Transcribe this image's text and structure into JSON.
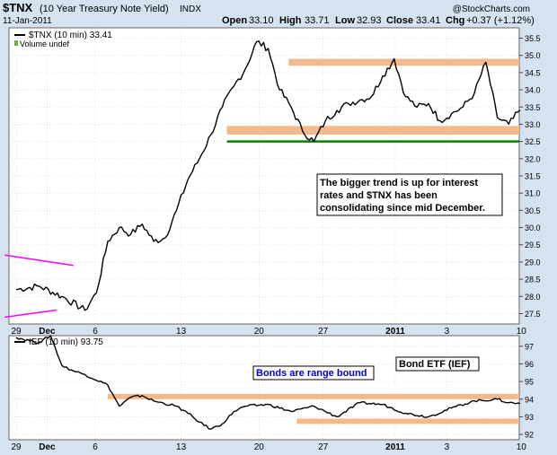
{
  "header": {
    "symbol": "$TNX",
    "name": "(10 Year Treasury Note Yield)",
    "exchange": "INDX",
    "date": "11-Jan-2011",
    "open_label": "Open",
    "open": "33.10",
    "high_label": "High",
    "high": "33.71",
    "low_label": "Low",
    "low": "32.93",
    "close_label": "Close",
    "close": "33.41",
    "chg_label": "Chg",
    "chg": "+0.37 (+1.12%)",
    "watermark": "@StockCharts.com"
  },
  "colors": {
    "background": "#d5e2ef",
    "plot": "#ffffff",
    "grid": "#cfcfcf",
    "price": "#000000",
    "band": "#f4b98a",
    "support_line": "#008000",
    "trend_line": "#ff00ff",
    "note_text": "#0000cc"
  },
  "chart_data": [
    {
      "type": "line",
      "legend": [
        "$TNX (10 min) 33.41",
        "Volume undef"
      ],
      "x_tick_labels": [
        "29",
        "Dec",
        "6",
        "13",
        "20",
        "27",
        "2011",
        "3",
        "10"
      ],
      "y_tick_labels": [
        "27.5",
        "28.0",
        "28.5",
        "29.0",
        "29.5",
        "30.0",
        "30.5",
        "31.0",
        "31.5",
        "32.0",
        "32.5",
        "33.0",
        "33.5",
        "34.0",
        "34.5",
        "35.0",
        "35.5"
      ],
      "ylim": [
        27.2,
        35.8
      ],
      "series": [
        {
          "x": [
            0,
            2,
            4,
            6,
            7,
            8,
            9,
            10,
            11,
            12,
            13,
            14,
            15,
            16,
            17,
            18,
            19,
            20,
            21,
            22,
            23,
            24,
            25,
            26,
            27,
            28,
            29,
            30,
            31,
            32,
            33,
            34,
            35,
            36,
            37,
            38,
            39,
            40,
            41,
            42,
            43,
            44
          ],
          "values": [
            28.2,
            28.3,
            28.0,
            27.6,
            28.1,
            29.6,
            30.0,
            29.8,
            30.1,
            29.6,
            29.7,
            30.5,
            31.4,
            32.0,
            32.7,
            33.5,
            34.1,
            34.6,
            35.4,
            35.2,
            34.0,
            33.5,
            32.8,
            32.5,
            33.1,
            33.4,
            33.6,
            33.7,
            33.8,
            34.4,
            34.9,
            33.8,
            33.5,
            33.6,
            33.1,
            33.3,
            33.5,
            33.9,
            34.8,
            33.2,
            33.0,
            33.41
          ]
        }
      ],
      "bands": [
        {
          "from": 34.7,
          "to": 34.9,
          "x_from": 23.8,
          "x_to": 44
        },
        {
          "from": 32.7,
          "to": 32.95,
          "x_from": 18.4,
          "x_to": 44
        }
      ],
      "support_line": 32.5,
      "trend_lines": [
        {
          "x": [
            -1,
            5
          ],
          "y": [
            29.2,
            28.9
          ]
        },
        {
          "x": [
            -1,
            3.5
          ],
          "y": [
            27.4,
            27.6
          ]
        }
      ],
      "annotation": "The bigger trend is up for interest rates and $TNX has been consolidating since mid December."
    },
    {
      "type": "line",
      "legend": [
        "IEF (10 min) 93.75"
      ],
      "x_tick_labels": [
        "29",
        "Dec",
        "6",
        "13",
        "20",
        "27",
        "2011",
        "3",
        "10"
      ],
      "y_tick_labels": [
        "92",
        "93",
        "94",
        "95",
        "96",
        "97"
      ],
      "ylim": [
        91.7,
        97.6
      ],
      "series": [
        {
          "x": [
            0,
            2,
            3,
            4,
            5,
            6,
            8,
            9,
            10,
            11,
            12,
            14,
            15,
            16,
            17,
            18,
            19,
            20,
            22,
            24,
            26,
            28,
            30,
            32,
            34,
            36,
            38,
            40,
            42,
            43,
            44
          ],
          "values": [
            97.5,
            97.2,
            97.6,
            95.9,
            95.6,
            95.4,
            94.8,
            93.6,
            94.1,
            94.2,
            93.9,
            93.6,
            93.2,
            92.7,
            92.3,
            92.6,
            93.3,
            93.6,
            93.7,
            93.3,
            93.6,
            93.0,
            93.8,
            93.7,
            93.2,
            93.0,
            93.5,
            93.9,
            94.0,
            93.8,
            93.75
          ]
        }
      ],
      "bands": [
        {
          "from": 94.0,
          "to": 94.3,
          "x_from": 8.0,
          "x_to": 44
        },
        {
          "from": 92.6,
          "to": 92.9,
          "x_from": 24.5,
          "x_to": 44
        }
      ],
      "notes": [
        "Bonds are range bound",
        "Bond ETF (IEF)"
      ]
    }
  ]
}
